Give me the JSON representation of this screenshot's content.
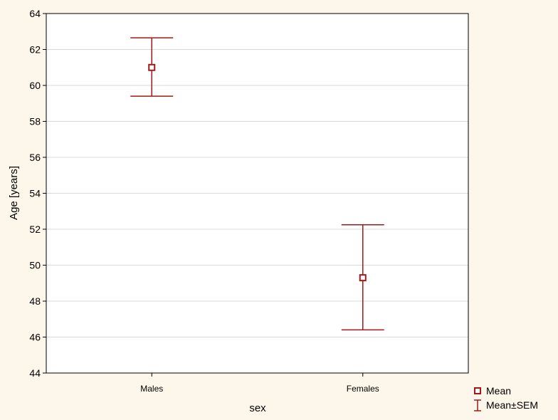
{
  "chart_data": {
    "type": "scatter",
    "subtype": "mean-error-bar",
    "title": "",
    "xlabel": "sex",
    "ylabel": "Age [years]",
    "ylim": [
      44,
      64
    ],
    "yticks": [
      "44",
      "46",
      "48",
      "50",
      "52",
      "54",
      "56",
      "58",
      "60",
      "62",
      "64"
    ],
    "grid": "horizontal",
    "categories": [
      "Males",
      "Females"
    ],
    "series": [
      {
        "name": "Mean",
        "values": [
          61.0,
          49.3
        ],
        "sem_low": [
          59.4,
          46.4
        ],
        "sem_high": [
          62.65,
          52.25
        ]
      }
    ],
    "legend": {
      "position": "right-bottom",
      "entries": [
        "Mean",
        "Mean±SEM"
      ]
    },
    "colors": {
      "marker": "#a01818",
      "background": "#fdf6ea",
      "plot": "#ffffff",
      "grid": "#d9d9d9"
    }
  }
}
